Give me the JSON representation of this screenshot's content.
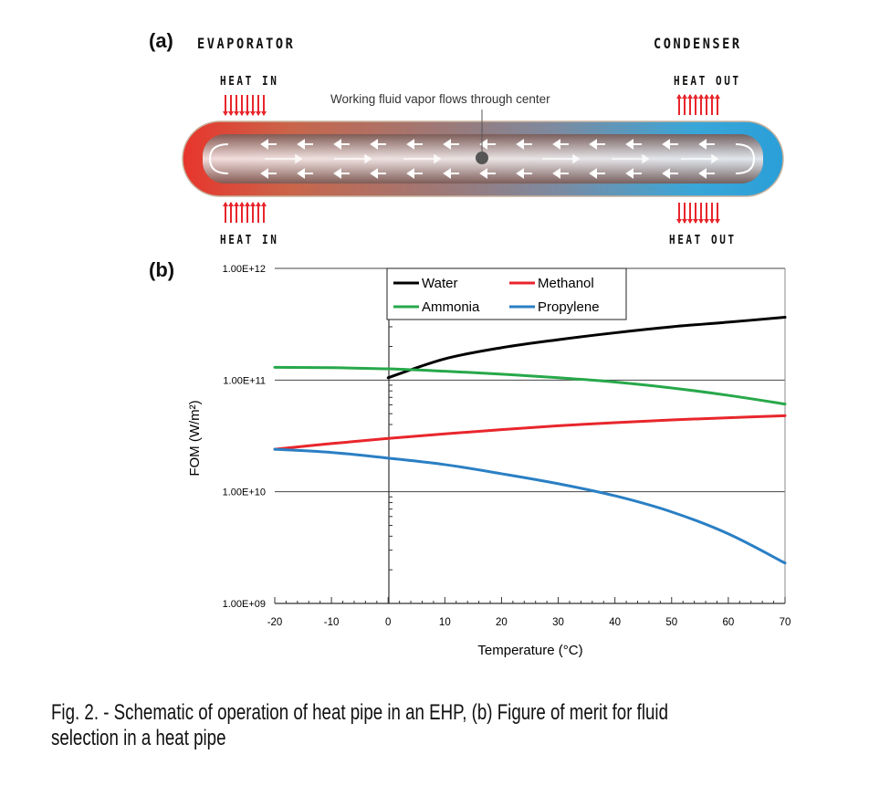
{
  "panel_a": {
    "label": "(a)",
    "evaporator": "EVAPORATOR",
    "condenser": "CONDENSER",
    "heat_in_top": "HEAT IN",
    "heat_in_bottom": "HEAT IN",
    "heat_out_top": "HEAT OUT",
    "heat_out_bottom": "HEAT OUT",
    "center_note": "Working fluid vapor flows through center",
    "colors": {
      "hot": "#e8352c",
      "mid": "#8a7f88",
      "cold": "#2a9fd8",
      "arrow": "#e8262c"
    }
  },
  "panel_b": {
    "label": "(b)"
  },
  "chart_data": {
    "type": "line",
    "xlabel": "Temperature (°C)",
    "ylabel": "FOM (W/m²)",
    "xlim": [
      -20,
      70
    ],
    "ylim": [
      1000000000.0,
      1000000000000.0
    ],
    "y_scale": "log",
    "x_ticks": [
      "-20",
      "-10",
      "0",
      "10",
      "20",
      "30",
      "40",
      "50",
      "60",
      "70"
    ],
    "y_ticks": [
      "1.00E+09",
      "1.00E+10",
      "1.00E+11",
      "1.00E+12"
    ],
    "grid": "horizontal major",
    "legend_position": "top-center",
    "x": [
      -20,
      -10,
      0,
      10,
      20,
      30,
      40,
      50,
      60,
      70
    ],
    "series": [
      {
        "name": "Water",
        "color": "#000000",
        "x": [
          0,
          10,
          20,
          30,
          40,
          50,
          60,
          70
        ],
        "values": [
          105000000000.0,
          155000000000.0,
          195000000000.0,
          230000000000.0,
          265000000000.0,
          300000000000.0,
          330000000000.0,
          365000000000.0
        ]
      },
      {
        "name": "Methanol",
        "color": "#e8262c",
        "x": [
          -20,
          -10,
          0,
          10,
          20,
          30,
          40,
          50,
          60,
          70
        ],
        "values": [
          24000000000.0,
          27000000000.0,
          30000000000.0,
          33000000000.0,
          36000000000.0,
          39000000000.0,
          41500000000.0,
          44000000000.0,
          46000000000.0,
          48000000000.0
        ]
      },
      {
        "name": "Ammonia",
        "color": "#27a84a",
        "x": [
          -20,
          -10,
          0,
          10,
          20,
          30,
          40,
          50,
          60,
          70
        ],
        "values": [
          130000000000.0,
          129000000000.0,
          126000000000.0,
          120000000000.0,
          113000000000.0,
          105000000000.0,
          96000000000.0,
          85000000000.0,
          73000000000.0,
          61000000000.0
        ]
      },
      {
        "name": "Propylene",
        "color": "#2a7fc4",
        "x": [
          -20,
          -10,
          0,
          10,
          20,
          30,
          40,
          50,
          60,
          70
        ],
        "values": [
          24000000000.0,
          22500000000.0,
          20000000000.0,
          17500000000.0,
          14500000000.0,
          11800000000.0,
          9200000000.0,
          6600000000.0,
          4200000000.0,
          2300000000.0
        ]
      }
    ]
  },
  "caption": {
    "line1": "Fig. 2. - Schematic of operation of heat pipe in an EHP, (b) Figure of merit for fluid",
    "line2": "selection in a heat pipe"
  }
}
